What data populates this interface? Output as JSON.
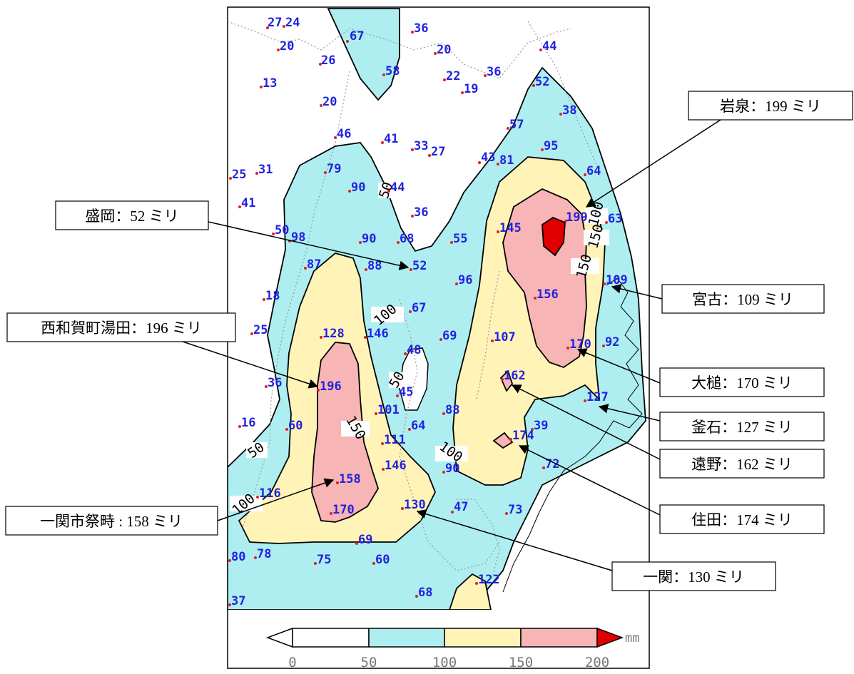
{
  "colors": {
    "band_50_100": "#aeeef0",
    "band_100_150": "#fff3b8",
    "band_150_200": "#f8b5b5",
    "band_over_200": "#e00000",
    "station_dot": "#e02020",
    "station_text": "#2222e0"
  },
  "contour_labels": [
    "50",
    "50",
    "50",
    "100",
    "100",
    "100",
    "100",
    "150",
    "150",
    "150"
  ],
  "stations": [
    {
      "value": "27"
    },
    {
      "value": "24"
    },
    {
      "value": "20"
    },
    {
      "value": "26"
    },
    {
      "value": "67"
    },
    {
      "value": "36"
    },
    {
      "value": "20"
    },
    {
      "value": "44"
    },
    {
      "value": "13"
    },
    {
      "value": "58"
    },
    {
      "value": "22"
    },
    {
      "value": "36"
    },
    {
      "value": "19"
    },
    {
      "value": "52"
    },
    {
      "value": "20"
    },
    {
      "value": "38"
    },
    {
      "value": "57"
    },
    {
      "value": "46"
    },
    {
      "value": "41"
    },
    {
      "value": "33"
    },
    {
      "value": "27"
    },
    {
      "value": "95"
    },
    {
      "value": "43"
    },
    {
      "value": "81"
    },
    {
      "value": "25"
    },
    {
      "value": "31"
    },
    {
      "value": "79"
    },
    {
      "value": "64"
    },
    {
      "value": "90"
    },
    {
      "value": "44"
    },
    {
      "value": "41"
    },
    {
      "value": "36"
    },
    {
      "value": "199"
    },
    {
      "value": "63"
    },
    {
      "value": "50"
    },
    {
      "value": "98"
    },
    {
      "value": "145"
    },
    {
      "value": "90"
    },
    {
      "value": "68"
    },
    {
      "value": "55"
    },
    {
      "value": "87"
    },
    {
      "value": "88"
    },
    {
      "value": "52"
    },
    {
      "value": "109"
    },
    {
      "value": "96"
    },
    {
      "value": "18"
    },
    {
      "value": "156"
    },
    {
      "value": "67"
    },
    {
      "value": "25"
    },
    {
      "value": "128"
    },
    {
      "value": "146"
    },
    {
      "value": "69"
    },
    {
      "value": "107"
    },
    {
      "value": "170"
    },
    {
      "value": "92"
    },
    {
      "value": "48"
    },
    {
      "value": "36"
    },
    {
      "value": "196"
    },
    {
      "value": "162"
    },
    {
      "value": "45"
    },
    {
      "value": "127"
    },
    {
      "value": "101"
    },
    {
      "value": "88"
    },
    {
      "value": "16"
    },
    {
      "value": "60"
    },
    {
      "value": "64"
    },
    {
      "value": "39"
    },
    {
      "value": "174"
    },
    {
      "value": "111"
    },
    {
      "value": "146"
    },
    {
      "value": "90"
    },
    {
      "value": "72"
    },
    {
      "value": "158"
    },
    {
      "value": "116"
    },
    {
      "value": "170"
    },
    {
      "value": "130"
    },
    {
      "value": "47"
    },
    {
      "value": "73"
    },
    {
      "value": "69"
    },
    {
      "value": "80"
    },
    {
      "value": "78"
    },
    {
      "value": "75"
    },
    {
      "value": "60"
    },
    {
      "value": "122"
    },
    {
      "value": "37"
    },
    {
      "value": "68"
    }
  ],
  "callouts": [
    {
      "label": "岩泉：199 ミリ"
    },
    {
      "label": "盛岡：52 ミリ"
    },
    {
      "label": "宮古：109 ミリ"
    },
    {
      "label": "西和賀町湯田：196 ミリ"
    },
    {
      "label": "大槌：170 ミリ"
    },
    {
      "label": "釜石：127 ミリ"
    },
    {
      "label": "遠野：162 ミリ"
    },
    {
      "label": "住田：174 ミリ"
    },
    {
      "label": "一関市祭畤 : 158 ミリ"
    },
    {
      "label": "一関：130 ミリ"
    }
  ],
  "colorbar": {
    "ticks": [
      "0",
      "50",
      "100",
      "150",
      "200"
    ],
    "unit": "mm"
  }
}
